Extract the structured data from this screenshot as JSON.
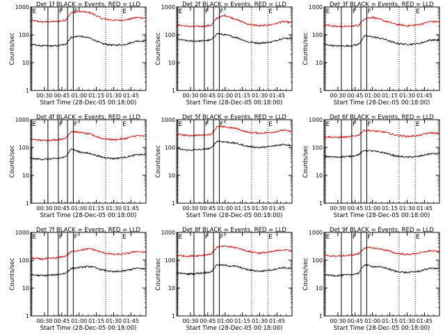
{
  "chart_data": {
    "type": "line",
    "layout": "3x3 grid",
    "panel_titles": [
      "Det 1f BLACK = Events, RED = LLD",
      "Det 2f BLACK = Events, RED = LLD",
      "Det 3f BLACK = Events, RED = LLD",
      "Det 4f BLACK = Events, RED = LLD",
      "Det 5f BLACK = Events, RED = LLD",
      "Det 6f BLACK = Events, RED = LLD",
      "Det 7f BLACK = Events, RED = LLD",
      "Det 8f BLACK = Events, RED = LLD",
      "Det 9f BLACK = Events, RED = LLD"
    ],
    "xlabel": "Start Time (28-Dec-05 00:18:00)",
    "ylabel": "Counts/sec",
    "yscale": "log",
    "ylim": [
      1,
      1000
    ],
    "y_tick_labels": [
      "1",
      "10",
      "100",
      "1000"
    ],
    "xlim_minutes_after_start": [
      0,
      100
    ],
    "x_tick_labels": [
      "00:30",
      "00:45",
      "01:00",
      "01:15",
      "01:30",
      "01:45"
    ],
    "x_tick_times": [
      "00:30",
      "00:45",
      "01:00",
      "01:15",
      "01:30",
      "01:45"
    ],
    "marker_lines": [
      {
        "label": "E",
        "time": "00:19",
        "style": "solid"
      },
      {
        "label": "",
        "time": "00:33",
        "style": "solid"
      },
      {
        "label": "F",
        "time": "00:42",
        "style": "solid"
      },
      {
        "label": "",
        "time": "00:50",
        "style": "solid"
      },
      {
        "label": "F",
        "time": "00:55",
        "style": "solid"
      },
      {
        "label": "",
        "time": "01:23",
        "style": "dotted"
      },
      {
        "label": "E",
        "time": "01:37",
        "style": "dotted"
      }
    ],
    "series_colors": {
      "events": "#000000",
      "lld": "#e00000"
    },
    "panels": [
      {
        "events": {
          "times": [
            "00:18",
            "00:28",
            "00:40",
            "00:48",
            "00:53",
            "01:00",
            "01:10",
            "01:20",
            "01:30",
            "01:40",
            "01:50",
            "01:58"
          ],
          "values": [
            45,
            40,
            40,
            45,
            80,
            90,
            75,
            48,
            42,
            45,
            60,
            60
          ]
        },
        "lld": {
          "times": [
            "00:18",
            "00:28",
            "00:40",
            "00:48",
            "00:53",
            "01:00",
            "01:10",
            "01:20",
            "01:30",
            "01:40",
            "01:50",
            "01:58"
          ],
          "values": [
            330,
            290,
            300,
            330,
            600,
            700,
            620,
            380,
            330,
            340,
            420,
            400
          ]
        }
      },
      {
        "events": {
          "times": [
            "00:18",
            "00:28",
            "00:40",
            "00:48",
            "00:53",
            "01:00",
            "01:10",
            "01:20",
            "01:30",
            "01:40",
            "01:50",
            "01:58"
          ],
          "values": [
            70,
            60,
            60,
            65,
            110,
            100,
            80,
            55,
            50,
            55,
            75,
            75
          ]
        },
        "lld": {
          "times": [
            "00:18",
            "00:28",
            "00:40",
            "00:48",
            "00:53",
            "01:00",
            "01:10",
            "01:20",
            "01:30",
            "01:40",
            "01:50",
            "01:58"
          ],
          "values": [
            230,
            200,
            200,
            220,
            400,
            500,
            350,
            240,
            210,
            230,
            300,
            270
          ]
        }
      },
      {
        "events": {
          "times": [
            "00:18",
            "00:28",
            "00:40",
            "00:48",
            "00:53",
            "01:00",
            "01:10",
            "01:20",
            "01:30",
            "01:40",
            "01:50",
            "01:58"
          ],
          "values": [
            45,
            40,
            40,
            45,
            90,
            85,
            70,
            50,
            45,
            48,
            65,
            65
          ]
        },
        "lld": {
          "times": [
            "00:18",
            "00:28",
            "00:40",
            "00:48",
            "00:53",
            "01:00",
            "01:10",
            "01:20",
            "01:30",
            "01:40",
            "01:50",
            "01:58"
          ],
          "values": [
            230,
            200,
            200,
            220,
            380,
            430,
            320,
            240,
            210,
            230,
            300,
            290
          ]
        }
      },
      {
        "events": {
          "times": [
            "00:18",
            "00:28",
            "00:40",
            "00:48",
            "00:53",
            "01:00",
            "01:10",
            "01:20",
            "01:30",
            "01:40",
            "01:50",
            "01:58"
          ],
          "values": [
            40,
            38,
            40,
            45,
            90,
            70,
            60,
            45,
            40,
            45,
            55,
            55
          ]
        },
        "lld": {
          "times": [
            "00:18",
            "00:28",
            "00:40",
            "00:48",
            "00:53",
            "01:00",
            "01:10",
            "01:20",
            "01:30",
            "01:40",
            "01:50",
            "01:58"
          ],
          "values": [
            200,
            180,
            190,
            210,
            380,
            350,
            300,
            210,
            190,
            210,
            270,
            250
          ]
        }
      },
      {
        "events": {
          "times": [
            "00:18",
            "00:28",
            "00:40",
            "00:48",
            "00:53",
            "01:00",
            "01:10",
            "01:20",
            "01:30",
            "01:40",
            "01:50",
            "01:58"
          ],
          "values": [
            90,
            80,
            85,
            95,
            170,
            160,
            140,
            110,
            100,
            110,
            130,
            120
          ]
        },
        "lld": {
          "times": [
            "00:18",
            "00:28",
            "00:40",
            "00:48",
            "00:53",
            "01:00",
            "01:10",
            "01:20",
            "01:30",
            "01:40",
            "01:50",
            "01:58"
          ],
          "values": [
            300,
            270,
            280,
            300,
            550,
            550,
            480,
            350,
            330,
            350,
            420,
            380
          ]
        }
      },
      {
        "events": {
          "times": [
            "00:18",
            "00:28",
            "00:40",
            "00:48",
            "00:53",
            "01:00",
            "01:10",
            "01:20",
            "01:30",
            "01:40",
            "01:50",
            "01:58"
          ],
          "values": [
            48,
            45,
            48,
            55,
            80,
            75,
            65,
            50,
            45,
            48,
            60,
            60
          ]
        },
        "lld": {
          "times": [
            "00:18",
            "00:28",
            "00:40",
            "00:48",
            "00:53",
            "01:00",
            "01:10",
            "01:20",
            "01:30",
            "01:40",
            "01:50",
            "01:58"
          ],
          "values": [
            250,
            230,
            240,
            280,
            420,
            400,
            360,
            280,
            250,
            270,
            340,
            320
          ]
        }
      },
      {
        "events": {
          "times": [
            "00:18",
            "00:28",
            "00:40",
            "00:48",
            "00:53",
            "01:00",
            "01:10",
            "01:20",
            "01:30",
            "01:40",
            "01:50",
            "01:58"
          ],
          "values": [
            30,
            28,
            30,
            34,
            50,
            55,
            60,
            45,
            38,
            42,
            52,
            48
          ]
        },
        "lld": {
          "times": [
            "00:18",
            "00:28",
            "00:40",
            "00:48",
            "00:53",
            "01:00",
            "01:10",
            "01:20",
            "01:30",
            "01:40",
            "01:50",
            "01:58"
          ],
          "values": [
            120,
            110,
            120,
            140,
            200,
            230,
            260,
            190,
            160,
            170,
            210,
            190
          ]
        }
      },
      {
        "events": {
          "times": [
            "00:18",
            "00:28",
            "00:40",
            "00:48",
            "00:53",
            "01:00",
            "01:10",
            "01:20",
            "01:30",
            "01:40",
            "01:50",
            "01:58"
          ],
          "values": [
            35,
            32,
            35,
            38,
            70,
            65,
            60,
            45,
            40,
            45,
            55,
            50
          ]
        },
        "lld": {
          "times": [
            "00:18",
            "00:28",
            "00:40",
            "00:48",
            "00:53",
            "01:00",
            "01:10",
            "01:20",
            "01:30",
            "01:40",
            "01:50",
            "01:58"
          ],
          "values": [
            150,
            140,
            150,
            170,
            300,
            320,
            280,
            210,
            180,
            200,
            240,
            220
          ]
        }
      },
      {
        "events": {
          "times": [
            "00:18",
            "00:28",
            "00:40",
            "00:48",
            "00:53",
            "01:00",
            "01:10",
            "01:20",
            "01:30",
            "01:40",
            "01:50",
            "01:58"
          ],
          "values": [
            30,
            28,
            30,
            34,
            70,
            60,
            55,
            40,
            36,
            40,
            52,
            50
          ]
        },
        "lld": {
          "times": [
            "00:18",
            "00:28",
            "00:40",
            "00:48",
            "00:53",
            "01:00",
            "01:10",
            "01:20",
            "01:30",
            "01:40",
            "01:50",
            "01:58"
          ],
          "values": [
            150,
            140,
            150,
            170,
            280,
            280,
            240,
            180,
            160,
            180,
            220,
            200
          ]
        }
      }
    ]
  }
}
